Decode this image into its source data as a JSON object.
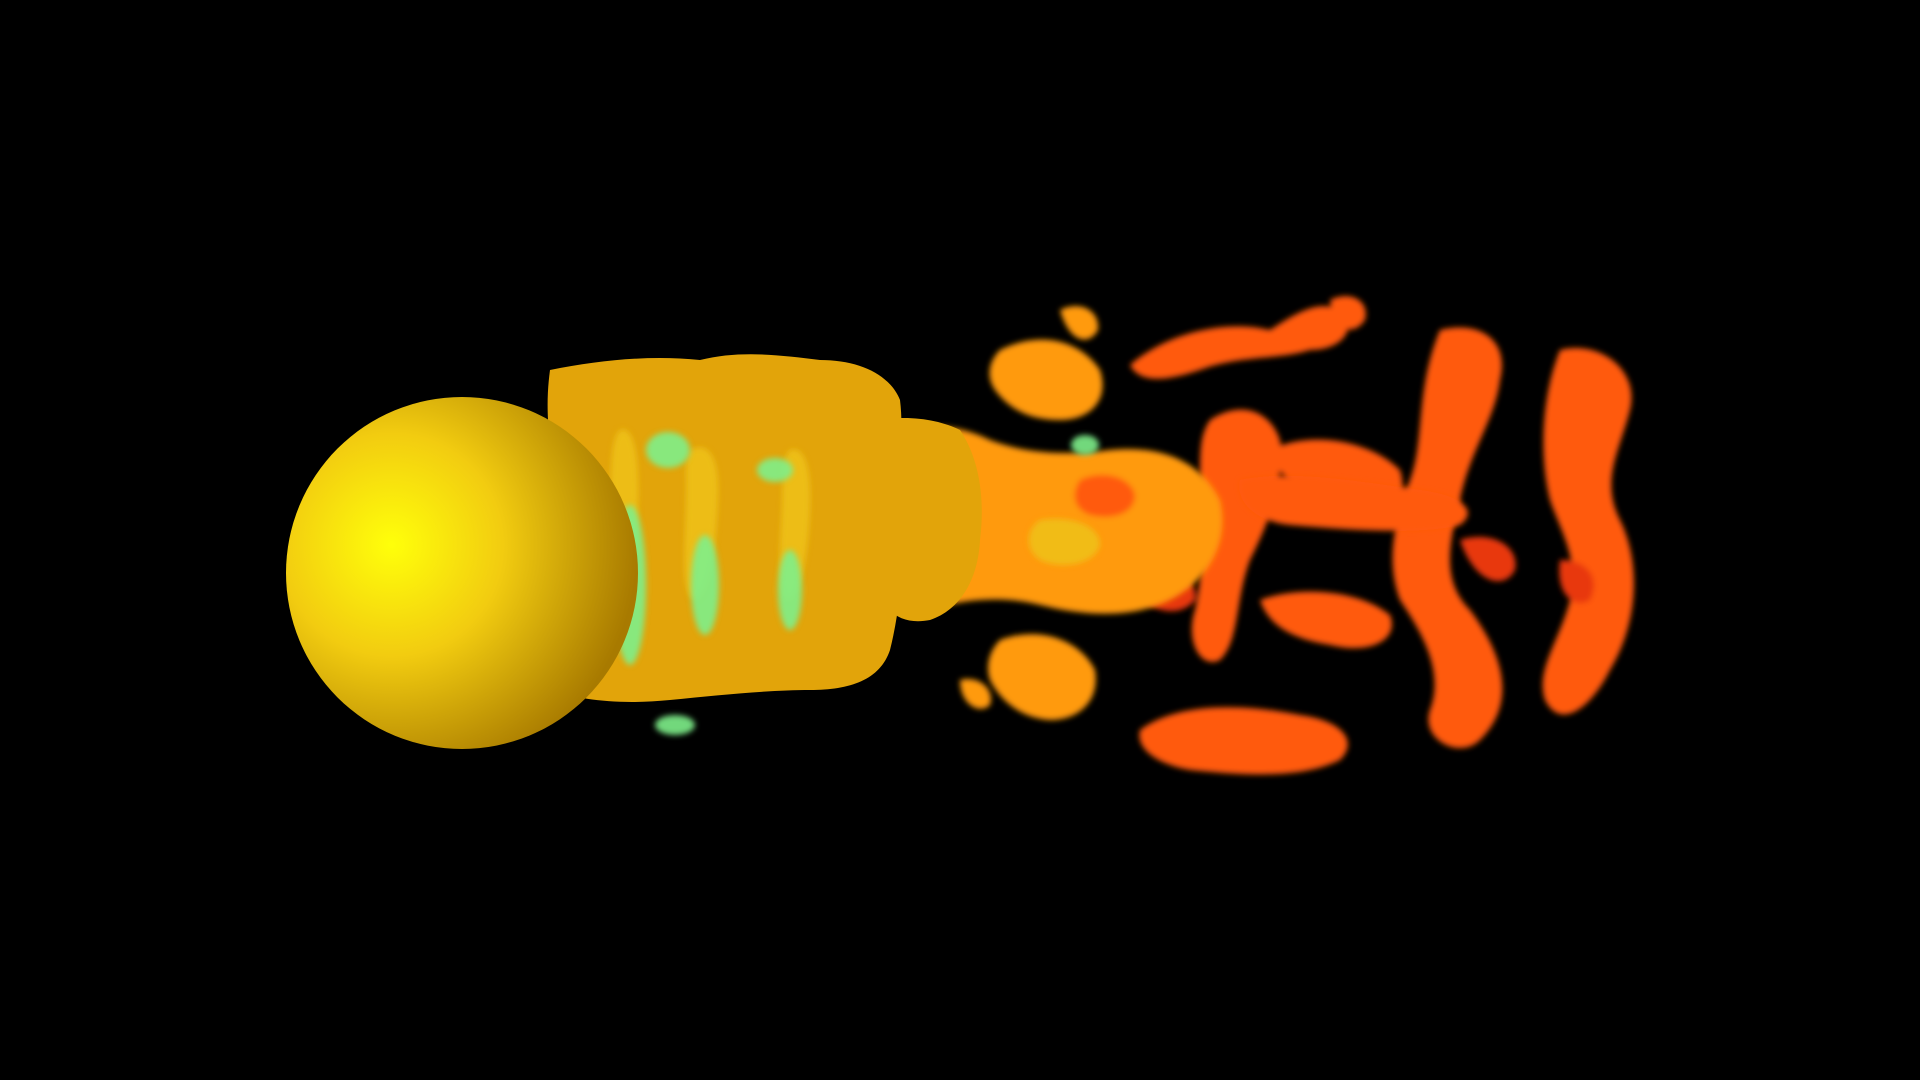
{
  "scene": {
    "background": "#000000",
    "sphere": {
      "color_light": "#ffff0a",
      "color_mid": "#f2cc10",
      "color_dark": "#a87a00"
    },
    "wake_colors": {
      "near_body": "#e2a40a",
      "near_body_highlight": "#eec21a",
      "pocket": "#7ef08a",
      "mid": "#ff9a10",
      "far": "#ff5a10",
      "far_dark": "#e8380a"
    }
  }
}
